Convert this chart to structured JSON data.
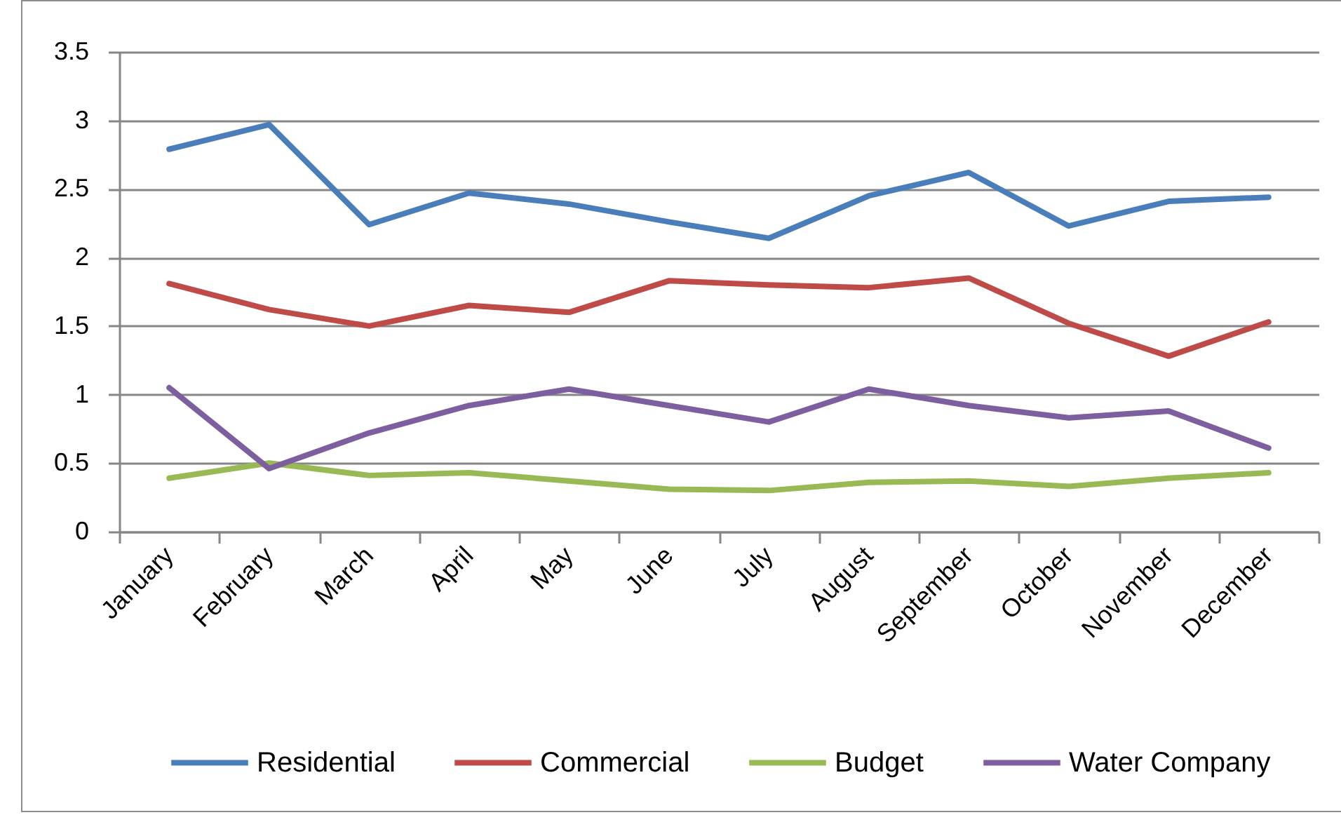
{
  "chart_data": {
    "type": "line",
    "categories": [
      "January",
      "February",
      "March",
      "April",
      "May",
      "June",
      "July",
      "August",
      "September",
      "October",
      "November",
      "December"
    ],
    "series": [
      {
        "name": "Residential",
        "color": "#4a7ebb",
        "values": [
          2.79,
          2.97,
          2.24,
          2.47,
          2.39,
          2.26,
          2.14,
          2.45,
          2.62,
          2.23,
          2.41,
          2.44
        ]
      },
      {
        "name": "Commercial",
        "color": "#be4b48",
        "values": [
          1.81,
          1.62,
          1.5,
          1.65,
          1.6,
          1.83,
          1.8,
          1.78,
          1.85,
          1.52,
          1.28,
          1.53
        ]
      },
      {
        "name": "Budget",
        "color": "#98b954",
        "values": [
          0.39,
          0.5,
          0.41,
          0.43,
          0.37,
          0.31,
          0.3,
          0.36,
          0.37,
          0.33,
          0.39,
          0.43
        ]
      },
      {
        "name": "Water Company",
        "color": "#7d5fa0",
        "values": [
          1.05,
          0.46,
          0.72,
          0.92,
          1.04,
          0.92,
          0.8,
          1.04,
          0.92,
          0.83,
          0.88,
          0.61
        ]
      }
    ],
    "ylim": [
      0,
      3.5
    ],
    "yticks": [
      0,
      0.5,
      1,
      1.5,
      2,
      2.5,
      3,
      3.5
    ],
    "grid": "y",
    "legend": "bottom",
    "line_style": "solid"
  }
}
